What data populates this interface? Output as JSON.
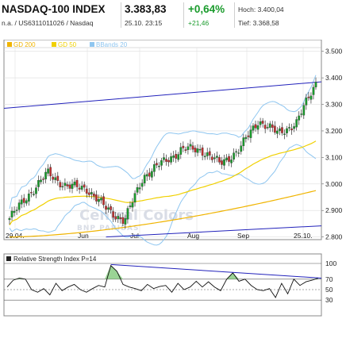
{
  "header": {
    "title": "NASDAQ-100 INDEX",
    "subtitle": "n.a. / US6311011026 / Nasdaq",
    "price": "3.383,83",
    "datetime": "25.10. 23:15",
    "change_pct": "+0,64%",
    "change_abs": "+21,46",
    "high_label": "Hoch: 3.400,04",
    "low_label": "Tief: 3.368,58",
    "change_color": "#1a9b2c"
  },
  "legend": {
    "items": [
      {
        "label": "GD 200",
        "color": "#f0b400"
      },
      {
        "label": "GD 50",
        "color": "#f0d000"
      },
      {
        "label": "BBands 20",
        "color": "#8fc6f0"
      }
    ]
  },
  "watermark": {
    "line1": "Central Colors",
    "line2": "BNP PARIBAS"
  },
  "chart_data": [
    {
      "type": "candlestick",
      "title": "NASDAQ-100 INDEX",
      "x_labels": [
        "29.04.",
        "Jun",
        "Jul",
        "Aug",
        "Sep",
        "25.10."
      ],
      "y_ticks": [
        "3.500",
        "3.400",
        "3.300",
        "3.200",
        "3.100",
        "3.000",
        "2.900",
        "2.800"
      ],
      "ylim": [
        2790,
        3520
      ],
      "series": [
        {
          "name": "Close",
          "x": [
            "Apr",
            "May",
            "May",
            "May",
            "May",
            "Jun",
            "Jun",
            "Jun",
            "Jul",
            "Jul",
            "Aug",
            "Aug",
            "Sep",
            "Sep",
            "Oct",
            "Oct",
            "Oct"
          ],
          "values": [
            2870,
            2960,
            3040,
            2990,
            2985,
            2910,
            2860,
            3030,
            3080,
            3130,
            3130,
            3075,
            3130,
            3240,
            3190,
            3230,
            3384
          ]
        },
        {
          "name": "GD 200",
          "values": [
            2800,
            2860,
            2900,
            2940,
            2970
          ]
        },
        {
          "name": "GD 50",
          "values": [
            2830,
            2890,
            2950,
            3000,
            3100,
            3200
          ]
        },
        {
          "name": "BBands 20",
          "values": []
        }
      ],
      "trendlines": [
        {
          "from": [
            "Apr",
            3285
          ],
          "to": [
            "Oct",
            3385
          ]
        },
        {
          "from": [
            "Jun",
            2800
          ],
          "to": [
            "Oct",
            2842
          ]
        }
      ],
      "grid": true
    },
    {
      "type": "line",
      "title": "Relative Strength Index P=14",
      "y_ticks": [
        "100",
        "70",
        "50",
        "30"
      ],
      "ylim": [
        0,
        100
      ],
      "series": [
        {
          "name": "RSI",
          "values": [
            55,
            68,
            72,
            70,
            50,
            45,
            52,
            40,
            62,
            48,
            55,
            60,
            50,
            45,
            52,
            58,
            55,
            96,
            85,
            60,
            55,
            52,
            48,
            60,
            52,
            56,
            58,
            45,
            62,
            50,
            55,
            66,
            55,
            65,
            55,
            48,
            70,
            82,
            66,
            70,
            58,
            50,
            48,
            52,
            35,
            62,
            42,
            70,
            58,
            65,
            68,
            72
          ]
        }
      ]
    }
  ]
}
